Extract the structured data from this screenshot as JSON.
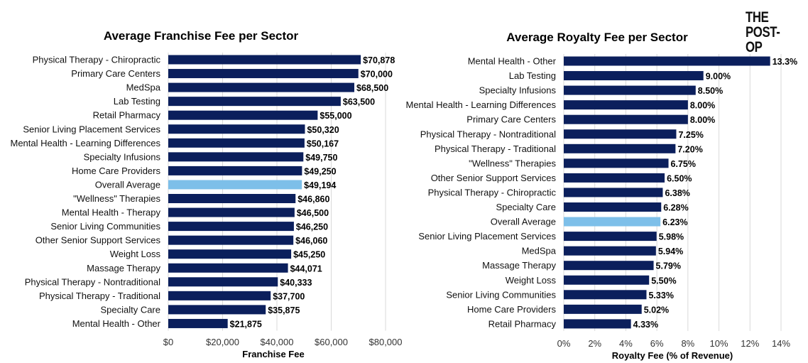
{
  "logo": {
    "line1": "THE",
    "line2": "POST-OP"
  },
  "colors": {
    "bar": "#0b1f5c",
    "highlight": "#7dbfe9",
    "grid": "#d9d9d9"
  },
  "chart_data": [
    {
      "type": "bar",
      "orientation": "horizontal",
      "title": "Average Franchise Fee per Sector",
      "xlabel": "Franchise Fee",
      "ylabel": "",
      "xlim": [
        0,
        80000
      ],
      "xticks": [
        0,
        20000,
        40000,
        60000,
        80000
      ],
      "xtick_labels": [
        "$0",
        "$20,000",
        "$40,000",
        "$60,000",
        "$80,000"
      ],
      "grid": true,
      "categories": [
        "Physical Therapy - Chiropractic",
        "Primary Care Centers",
        "MedSpa",
        "Lab Testing",
        "Retail Pharmacy",
        "Senior Living Placement Services",
        "Mental Health - Learning Differences",
        "Specialty Infusions",
        "Home Care Providers",
        "Overall Average",
        "\"Wellness\" Therapies",
        "Mental Health - Therapy",
        "Senior Living Communities",
        "Other Senior Support Services",
        "Weight Loss",
        "Massage Therapy",
        "Physical Therapy - Nontraditional",
        "Physical Therapy - Traditional",
        "Specialty Care",
        "Mental Health - Other"
      ],
      "values": [
        70878,
        70000,
        68500,
        63500,
        55000,
        50320,
        50167,
        49750,
        49250,
        49194,
        46860,
        46500,
        46250,
        46060,
        45250,
        44071,
        40333,
        37700,
        35875,
        21875
      ],
      "labels": [
        "$70,878",
        "$70,000",
        "$68,500",
        "$63,500",
        "$55,000",
        "$50,320",
        "$50,167",
        "$49,750",
        "$49,250",
        "$49,194",
        "$46,860",
        "$46,500",
        "$46,250",
        "$46,060",
        "$45,250",
        "$44,071",
        "$40,333",
        "$37,700",
        "$35,875",
        "$21,875"
      ],
      "highlight": "Overall Average"
    },
    {
      "type": "bar",
      "orientation": "horizontal",
      "title": "Average Royalty Fee per Sector",
      "xlabel": "Royalty Fee (% of Revenue)",
      "ylabel": "",
      "xlim": [
        0,
        14
      ],
      "xticks": [
        0,
        2,
        4,
        6,
        8,
        10,
        12,
        14
      ],
      "xtick_labels": [
        "0%",
        "2%",
        "4%",
        "6%",
        "8%",
        "10%",
        "12%",
        "14%"
      ],
      "grid": true,
      "categories": [
        "Mental Health - Other",
        "Lab Testing",
        "Specialty Infusions",
        "Mental Health - Learning Differences",
        "Primary Care Centers",
        "Physical Therapy - Nontraditional",
        "Physical Therapy - Traditional",
        "\"Wellness\" Therapies",
        "Other Senior Support Services",
        "Physical Therapy - Chiropractic",
        "Specialty Care",
        "Overall Average",
        "Senior Living Placement Services",
        "MedSpa",
        "Massage Therapy",
        "Weight Loss",
        "Senior Living Communities",
        "Home Care Providers",
        "Retail Pharmacy"
      ],
      "values": [
        13.3,
        9.0,
        8.5,
        8.0,
        8.0,
        7.25,
        7.2,
        6.75,
        6.5,
        6.38,
        6.28,
        6.23,
        5.98,
        5.94,
        5.79,
        5.5,
        5.33,
        5.02,
        4.33
      ],
      "labels": [
        "13.3%",
        "9.00%",
        "8.50%",
        "8.00%",
        "8.00%",
        "7.25%",
        "7.20%",
        "6.75%",
        "6.50%",
        "6.38%",
        "6.28%",
        "6.23%",
        "5.98%",
        "5.94%",
        "5.79%",
        "5.50%",
        "5.33%",
        "5.02%",
        "4.33%"
      ],
      "highlight": "Overall Average"
    }
  ]
}
